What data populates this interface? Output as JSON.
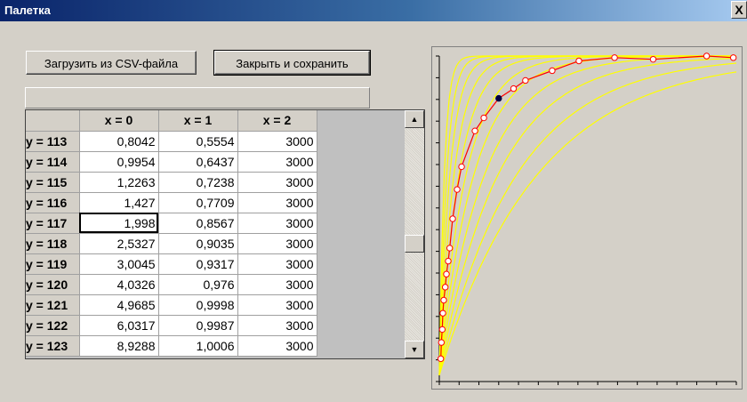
{
  "window": {
    "title": "Палетка",
    "close_label": "X"
  },
  "toolbar": {
    "load_label": "Загрузить из CSV-файла",
    "save_label": "Закрыть и сохранить"
  },
  "grid": {
    "columns": [
      "x = 0",
      "x = 1",
      "x = 2"
    ],
    "rows": [
      {
        "label": "y = 113",
        "cells": [
          "0,8042",
          "0,5554",
          "3000"
        ]
      },
      {
        "label": "y = 114",
        "cells": [
          "0,9954",
          "0,6437",
          "3000"
        ]
      },
      {
        "label": "y = 115",
        "cells": [
          "1,2263",
          "0,7238",
          "3000"
        ]
      },
      {
        "label": "y = 116",
        "cells": [
          "1,427",
          "0,7709",
          "3000"
        ]
      },
      {
        "label": "y = 117",
        "cells": [
          "1,998",
          "0,8567",
          "3000"
        ]
      },
      {
        "label": "y = 118",
        "cells": [
          "2,5327",
          "0,9035",
          "3000"
        ]
      },
      {
        "label": "y = 119",
        "cells": [
          "3,0045",
          "0,9317",
          "3000"
        ]
      },
      {
        "label": "y = 120",
        "cells": [
          "4,0326",
          "0,976",
          "3000"
        ]
      },
      {
        "label": "y = 121",
        "cells": [
          "4,9685",
          "0,9998",
          "3000"
        ]
      },
      {
        "label": "y = 122",
        "cells": [
          "6,0317",
          "0,9987",
          "3000"
        ]
      },
      {
        "label": "y = 123",
        "cells": [
          "8,9288",
          "1,0006",
          "3000"
        ]
      }
    ],
    "selected_cell": {
      "row": 4,
      "col": 0
    }
  },
  "chart_data": {
    "type": "line",
    "colors": {
      "curves": "#ffff00",
      "selected": "#ff0000",
      "marker_fill": "#ffffff",
      "highlight": "#000040"
    },
    "ylim": [
      0,
      1
    ],
    "series": [
      {
        "k": 60,
        "values": []
      },
      {
        "k": 40,
        "values": []
      },
      {
        "k": 28,
        "values": []
      },
      {
        "k": 20,
        "values": []
      },
      {
        "k": 15,
        "values": []
      },
      {
        "k": 11,
        "values": []
      },
      {
        "k": 8.5,
        "values": []
      },
      {
        "k": 6.5,
        "values": []
      },
      {
        "k": 5,
        "values": []
      },
      {
        "k": 3.8,
        "values": []
      },
      {
        "k": 3,
        "values": []
      }
    ],
    "selected_points": [
      [
        0.005,
        0.07
      ],
      [
        0.007,
        0.12
      ],
      [
        0.01,
        0.16
      ],
      [
        0.012,
        0.21
      ],
      [
        0.015,
        0.25
      ],
      [
        0.02,
        0.29
      ],
      [
        0.024,
        0.33
      ],
      [
        0.03,
        0.37
      ],
      [
        0.035,
        0.41
      ],
      [
        0.045,
        0.5
      ],
      [
        0.06,
        0.59
      ],
      [
        0.075,
        0.66
      ],
      [
        0.12,
        0.77
      ],
      [
        0.15,
        0.81
      ],
      [
        0.2,
        0.87
      ],
      [
        0.25,
        0.9
      ],
      [
        0.29,
        0.925
      ],
      [
        0.38,
        0.955
      ],
      [
        0.47,
        0.985
      ],
      [
        0.59,
        0.995
      ],
      [
        0.72,
        0.99
      ],
      [
        0.9,
        1.0
      ],
      [
        0.99,
        0.995
      ]
    ],
    "highlight_index": 14
  }
}
